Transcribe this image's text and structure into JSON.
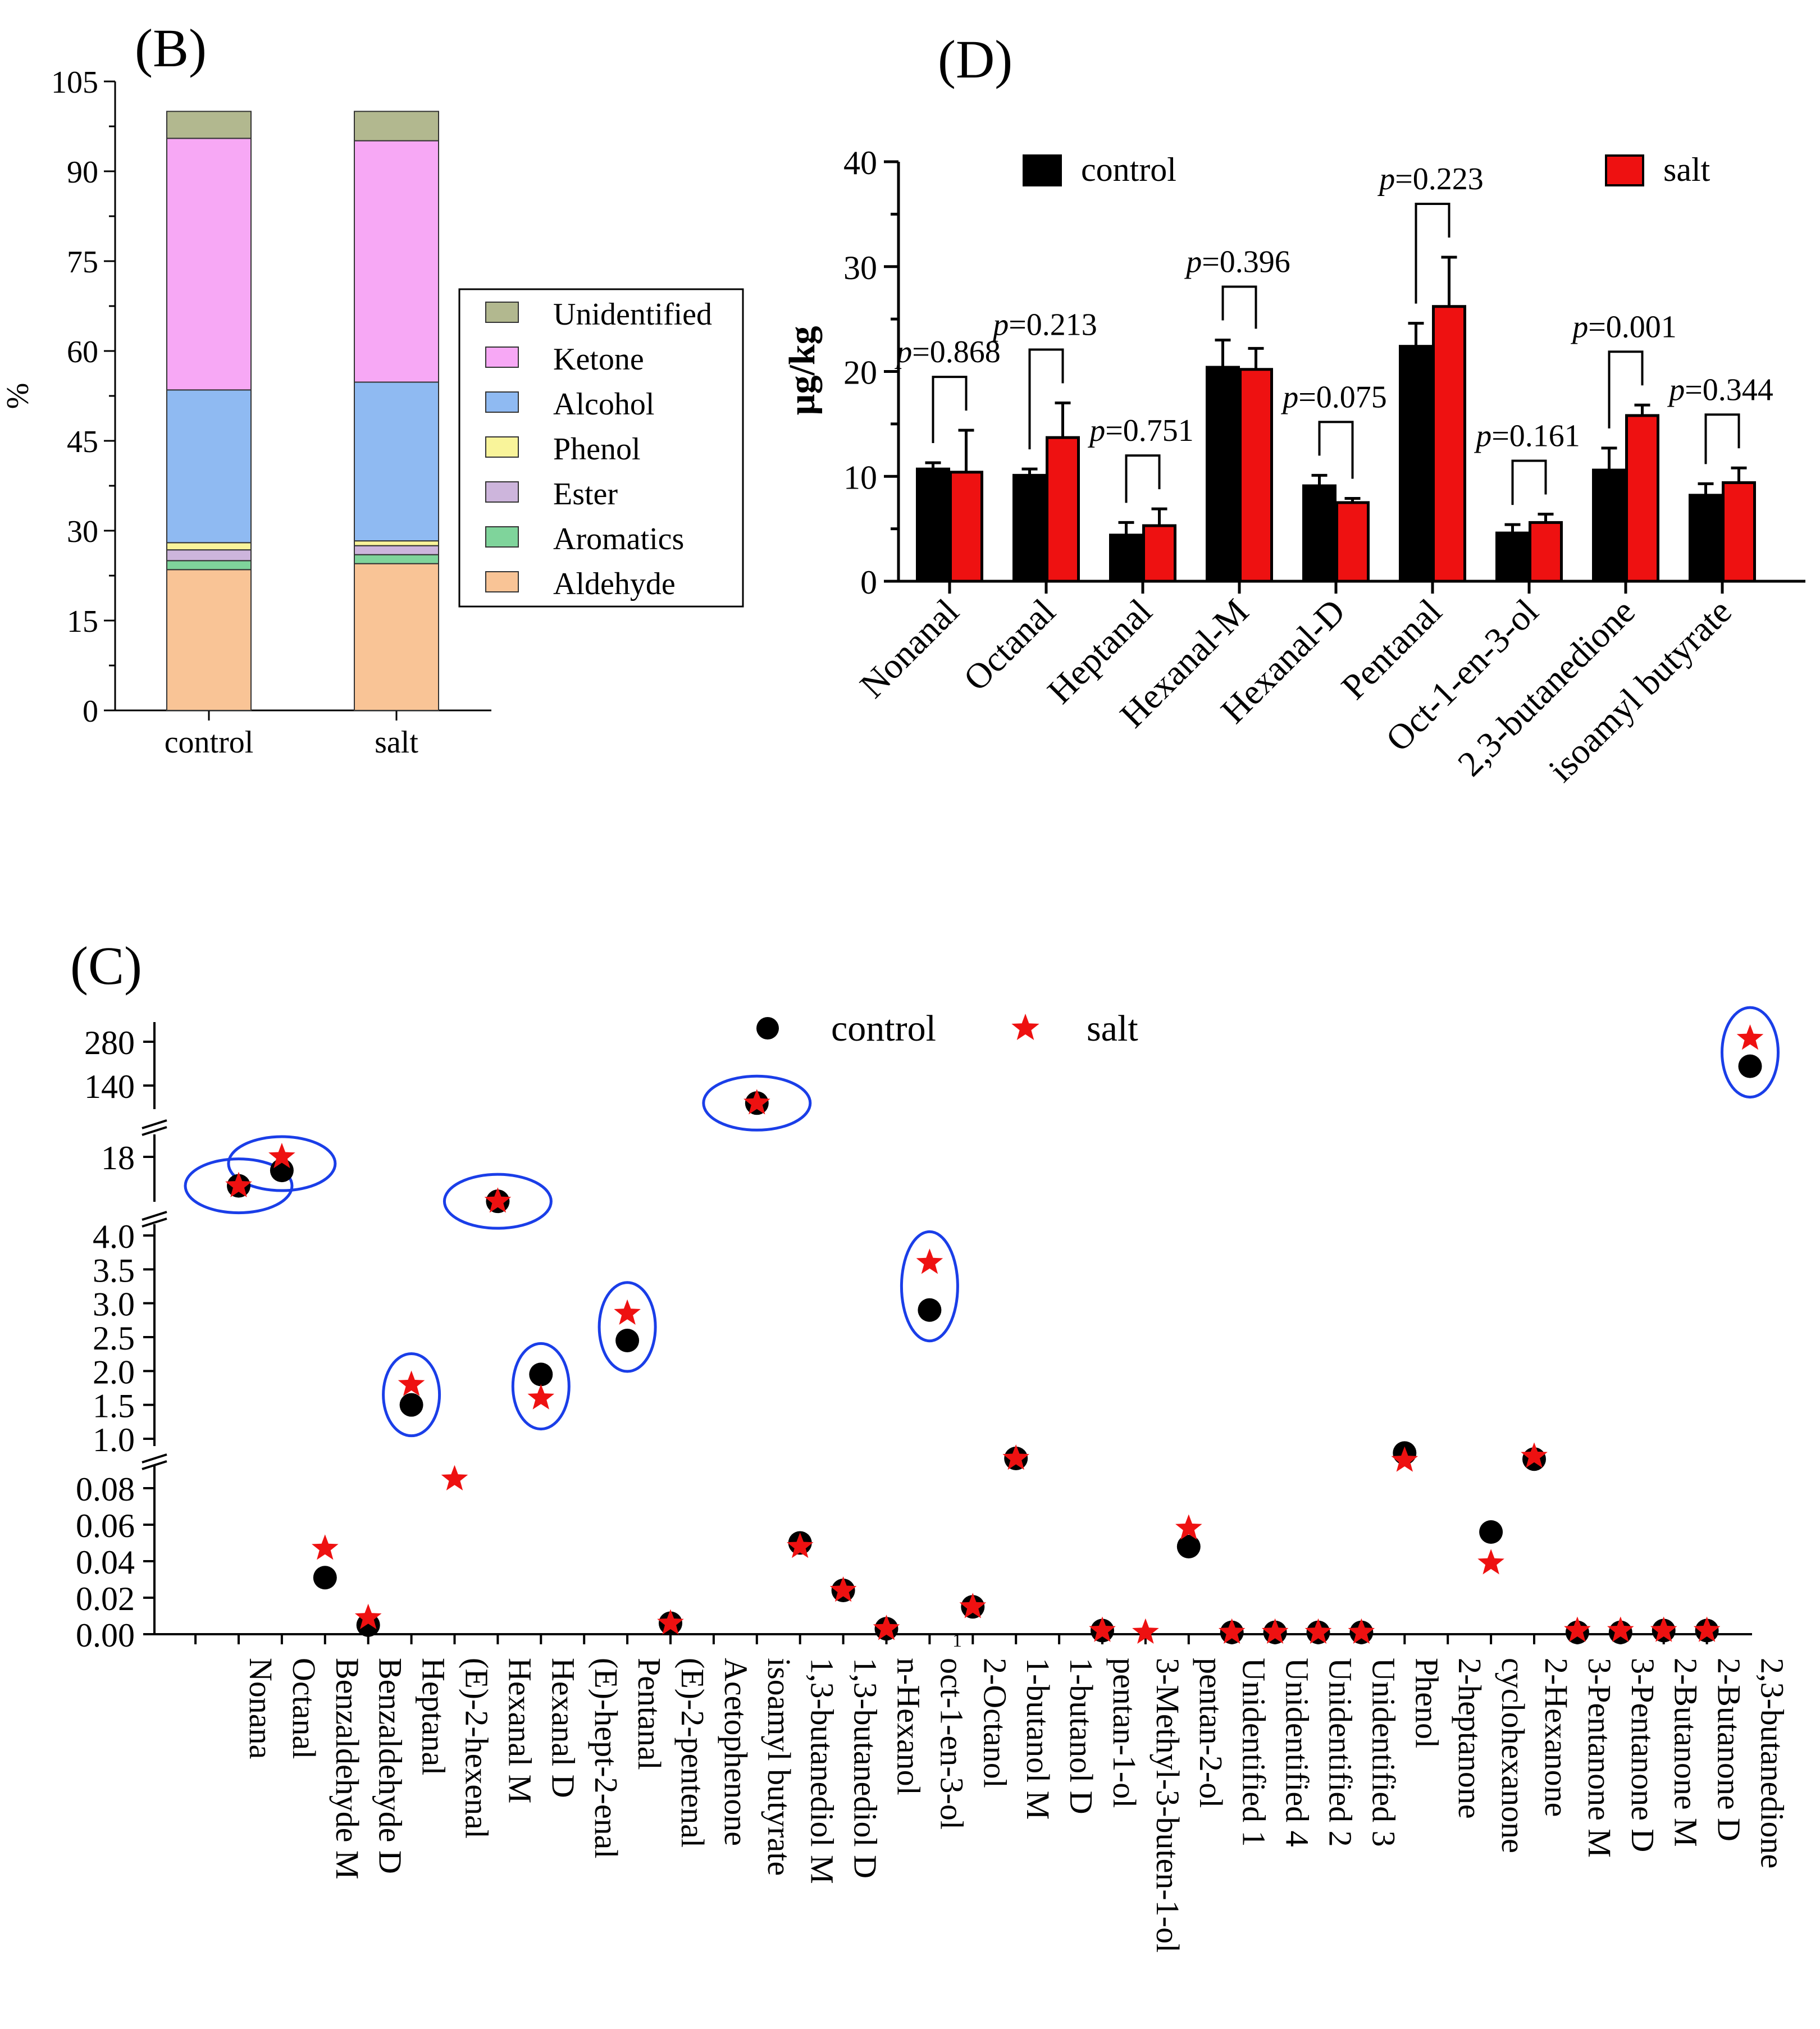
{
  "figure": {
    "panels": [
      {
        "id": "B",
        "label": "(B)"
      },
      {
        "id": "D",
        "label": "(D)"
      },
      {
        "id": "C",
        "label": "(C)"
      }
    ]
  },
  "colors": {
    "Unidentified": "#b2b88f",
    "Ketone": "#f7a8f5",
    "Alcohol": "#8fbaf2",
    "Phenol": "#f9f49a",
    "Ester": "#cdb5dc",
    "Aromatics": "#7fd49b",
    "Aldehyde": "#f9c496",
    "control": "#000000",
    "salt": "#ee1111",
    "ellipse": "#1a3ee8"
  },
  "chart_data": [
    {
      "panel": "B",
      "type": "bar",
      "stacked": true,
      "title": "(B)",
      "xlabel": "",
      "ylabel": "%",
      "ylim": [
        0,
        105
      ],
      "yticks": [
        "0",
        "15",
        "30",
        "45",
        "60",
        "75",
        "90",
        "105"
      ],
      "categories": [
        "control",
        "salt"
      ],
      "legend_position": "right",
      "legend_order": [
        "Unidentified",
        "Ketone",
        "Alcohol",
        "Phenol",
        "Ester",
        "Aromatics",
        "Aldehyde"
      ],
      "series": [
        {
          "name": "Aldehyde",
          "values": [
            23.5,
            24.5
          ]
        },
        {
          "name": "Aromatics",
          "values": [
            1.5,
            1.5
          ]
        },
        {
          "name": "Ester",
          "values": [
            1.8,
            1.5
          ]
        },
        {
          "name": "Phenol",
          "values": [
            1.2,
            0.8
          ]
        },
        {
          "name": "Alcohol",
          "values": [
            25.5,
            26.5
          ]
        },
        {
          "name": "Ketone",
          "values": [
            42.0,
            40.3
          ]
        },
        {
          "name": "Unidentified",
          "values": [
            4.5,
            4.9
          ]
        }
      ]
    },
    {
      "panel": "D",
      "type": "bar",
      "title": "(D)",
      "xlabel": "",
      "ylabel": "µg/kg",
      "ylim": [
        0,
        40
      ],
      "yticks": [
        "0",
        "10",
        "20",
        "30",
        "40"
      ],
      "categories": [
        "Nonanal",
        "Octanal",
        "Heptanal",
        "Hexanal-M",
        "Hexanal-D",
        "Pentanal",
        "Oct-1-en-3-ol",
        "2,3-butanedione",
        "isoamyl butyrate"
      ],
      "legend_position": "top",
      "series": [
        {
          "name": "control",
          "values": [
            10.7,
            10.1,
            4.4,
            20.4,
            9.1,
            22.4,
            4.6,
            10.6,
            8.2
          ],
          "errors": [
            0.6,
            0.6,
            1.2,
            2.6,
            1.0,
            2.2,
            0.8,
            2.1,
            1.1
          ]
        },
        {
          "name": "salt",
          "values": [
            10.4,
            13.7,
            5.3,
            20.2,
            7.5,
            26.2,
            5.6,
            15.8,
            9.4
          ],
          "errors": [
            4.0,
            3.3,
            1.6,
            2.0,
            0.4,
            4.7,
            0.8,
            1.0,
            1.4
          ]
        }
      ],
      "p_labels": [
        "=0.868",
        "=0.213",
        "=0.751",
        "=0.396",
        "=0.075",
        "=0.223",
        "=0.161",
        "=0.001",
        "=0.344"
      ],
      "p_prefix": "p"
    },
    {
      "panel": "C",
      "type": "scatter",
      "title": "(C)",
      "xlabel": "",
      "ylabel": "",
      "legend_position": "top",
      "series_names": [
        "control",
        "salt"
      ],
      "ytick_labels": [
        "0.00",
        "0.02",
        "0.04",
        "0.06",
        "0.08",
        "1.0",
        "1.5",
        "2.0",
        "2.5",
        "3.0",
        "3.5",
        "4.0",
        "18",
        "140",
        "280"
      ],
      "ytick_values": [
        0,
        0.02,
        0.04,
        0.06,
        0.08,
        1.0,
        1.5,
        2.0,
        2.5,
        3.0,
        3.5,
        4.0,
        18,
        140,
        280
      ],
      "stray_tick_label": "1",
      "categories": [
        "Nonana",
        "Octanal",
        "Benzaldehyde M",
        "Benzaldehyde D",
        "Heptanal",
        "(E)-2-hexenal",
        "Hexanal M",
        "Hexanal D",
        "(E)-hept-2-enal",
        "Pentanal",
        "(E)-2-pentenal",
        "Acetophenone",
        "isoamyl butyrate",
        "1,3-butanediol M",
        "1,3-butanediol D",
        "n-Hexanol",
        "oct-1-en-3-ol",
        "2-Octanol",
        "1-butanol M",
        "1-butanol D",
        "pentan-1-ol",
        "3-Methyl-3-buten-1-ol",
        "pentan-2-ol",
        "Unidentified 1",
        "Unidentified 4",
        "Unidentified 2",
        "Unidentified 3",
        "Phenol",
        "2-heptanone",
        "cyclohexanone",
        "2-Hexanone",
        "3-Pentanone M",
        "3-Pentanone D",
        "2-Butanone M",
        "2-Butanone D",
        "2,3-butanedione"
      ],
      "control": [
        10.5,
        14.5,
        0.031,
        0.005,
        1.5,
        null,
        6.5,
        1.95,
        null,
        2.45,
        0.006,
        null,
        106,
        0.05,
        0.024,
        0.003,
        2.9,
        0.015,
        0.71,
        null,
        0.002,
        null,
        0.048,
        0.001,
        0.001,
        0.001,
        0.001,
        0.79,
        null,
        0.056,
        0.7,
        0.001,
        0.001,
        0.002,
        0.002,
        190
      ],
      "salt": [
        10.5,
        19.5,
        0.047,
        0.009,
        1.8,
        0.085,
        6.5,
        1.6,
        null,
        2.85,
        0.006,
        null,
        106,
        0.048,
        0.024,
        0.003,
        3.6,
        0.015,
        0.71,
        null,
        0.002,
        0.001,
        0.058,
        0.001,
        0.001,
        0.001,
        0.001,
        0.68,
        null,
        0.039,
        0.74,
        0.002,
        0.002,
        0.002,
        0.002,
        295
      ],
      "highlighted": [
        "Nonana",
        "Octanal",
        "Heptanal",
        "Hexanal M",
        "Hexanal D",
        "Pentanal",
        "isoamyl butyrate",
        "oct-1-en-3-ol",
        "2,3-butanedione"
      ]
    }
  ]
}
